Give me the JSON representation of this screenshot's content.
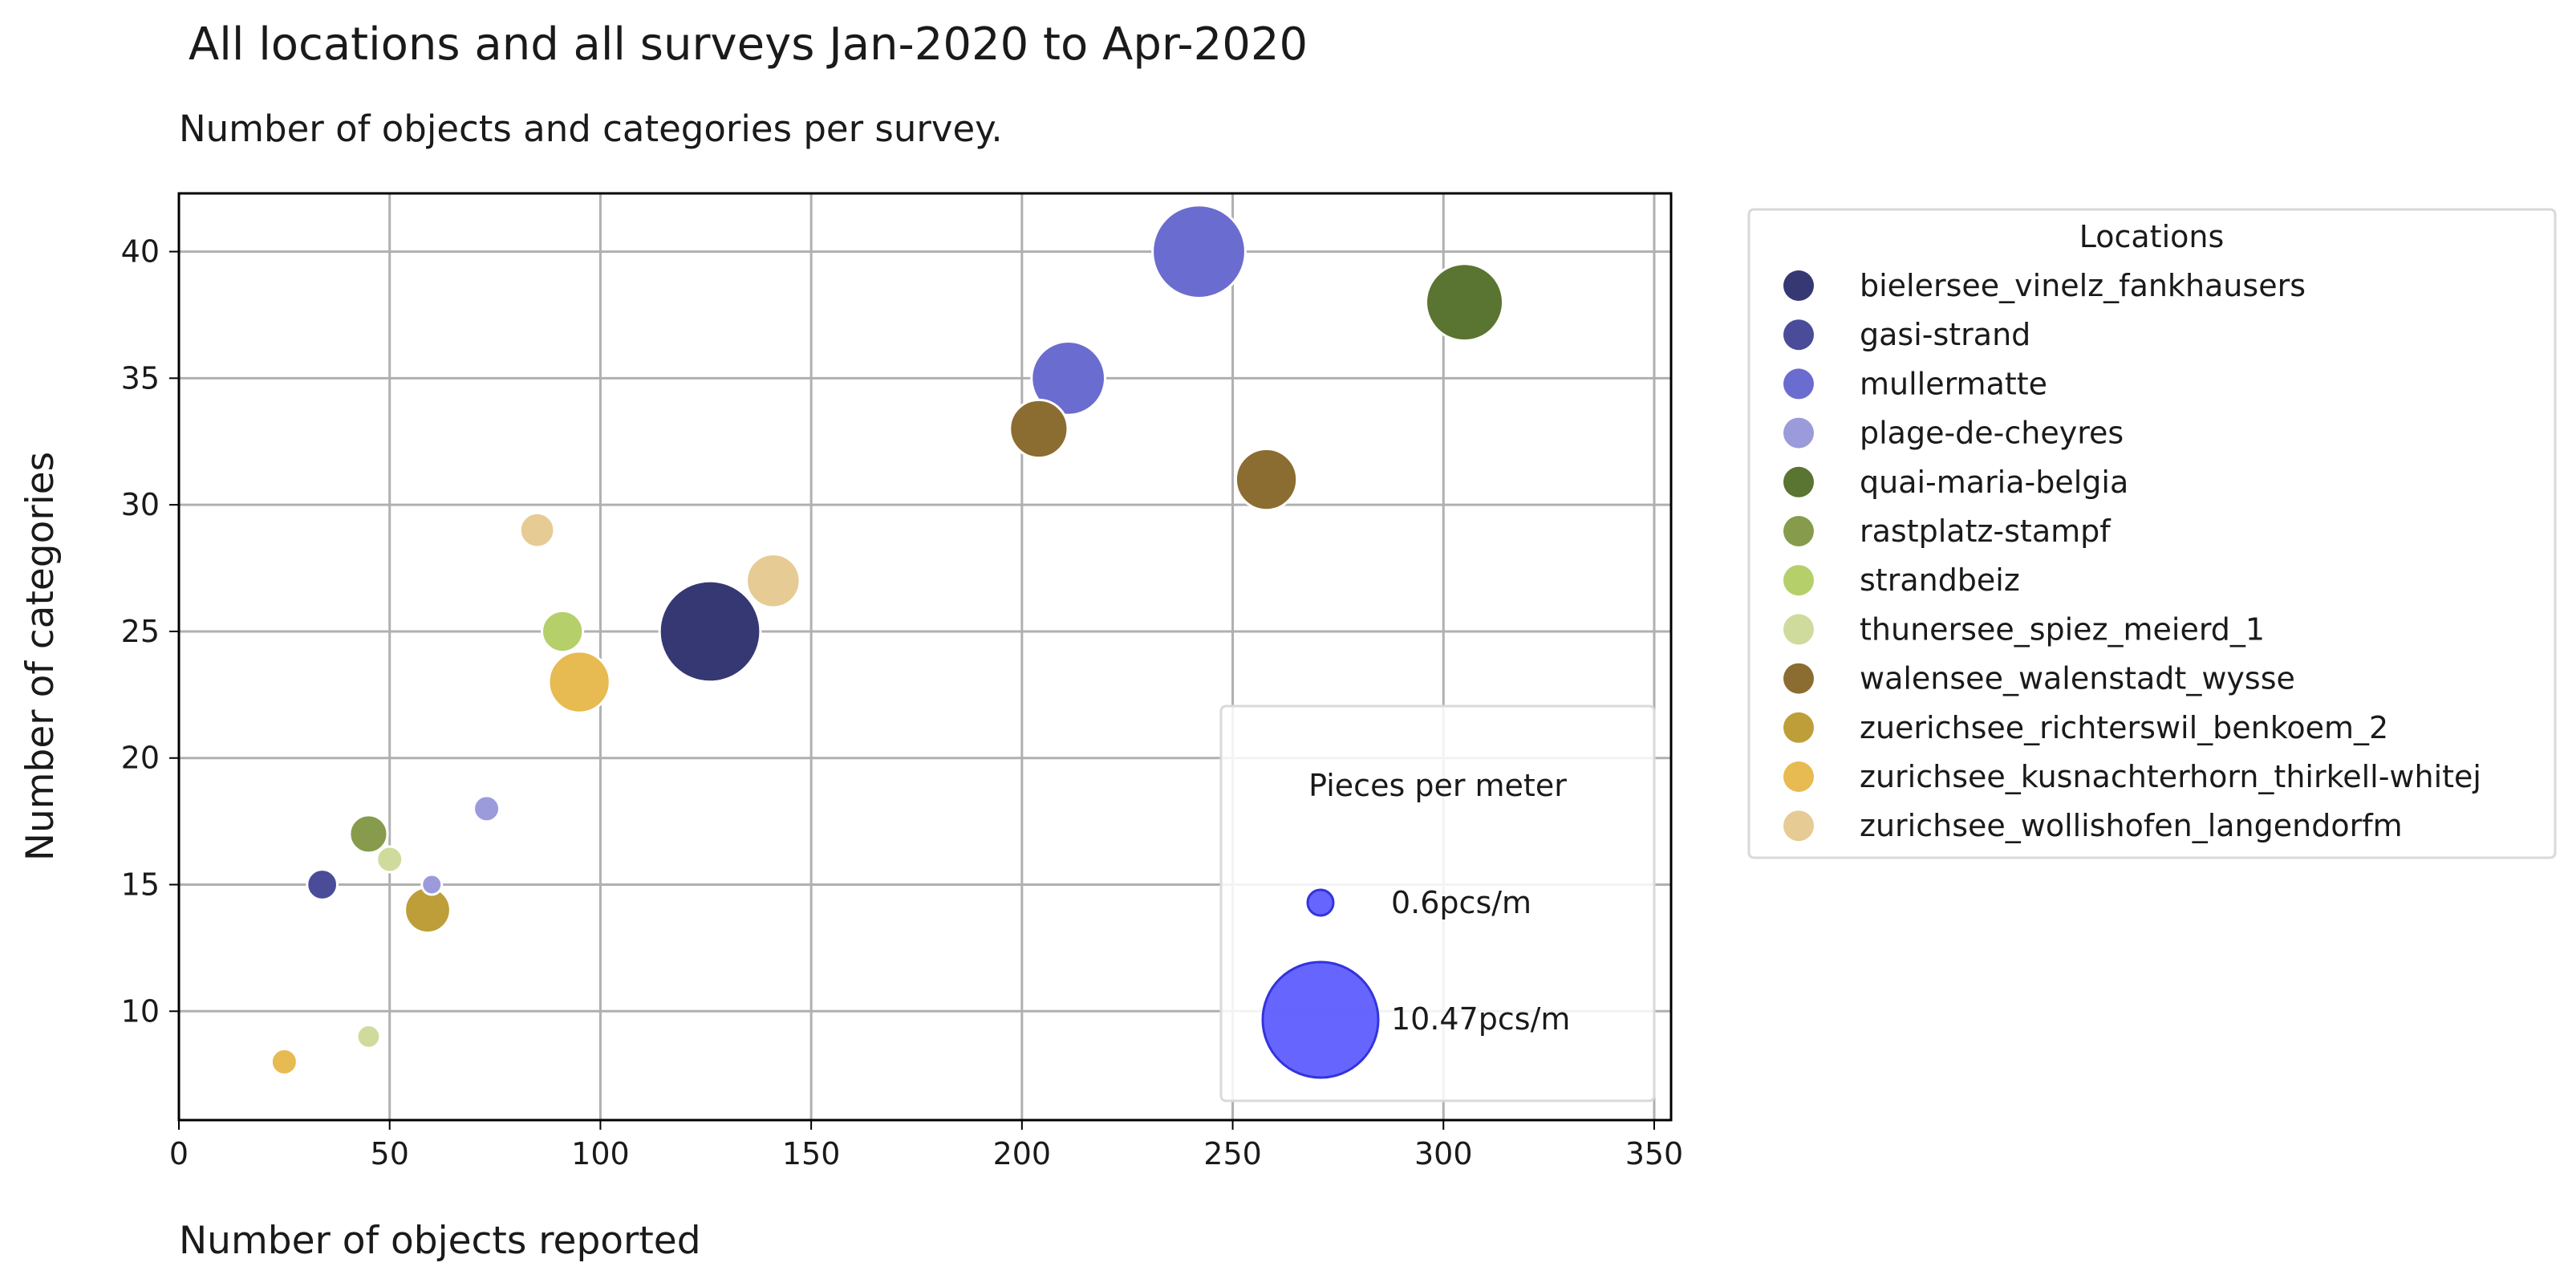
{
  "chart_data": {
    "type": "scatter",
    "title": "All locations and all surveys Jan-2020 to Apr-2020",
    "subtitle": "Number of objects and categories per survey.",
    "xlabel": "Number of objects reported",
    "ylabel": "Number of categories",
    "xlim": [
      0,
      354
    ],
    "ylim": [
      5.7,
      42.3
    ],
    "xticks": [
      0,
      50,
      100,
      150,
      200,
      250,
      300,
      350
    ],
    "yticks": [
      10,
      15,
      20,
      25,
      30,
      35,
      40
    ],
    "grid": true,
    "legend": {
      "title": "Locations",
      "placement": "outside-right",
      "entries": [
        {
          "name": "bielersee_vinelz_fankhausers",
          "color": "#353872"
        },
        {
          "name": "gasi-strand",
          "color": "#4a4c99"
        },
        {
          "name": "mullermatte",
          "color": "#6b6ccf"
        },
        {
          "name": "plage-de-cheyres",
          "color": "#9b9bdb"
        },
        {
          "name": "quai-maria-belgia",
          "color": "#5a7431"
        },
        {
          "name": "rastplatz-stampf",
          "color": "#869c4c"
        },
        {
          "name": "strandbeiz",
          "color": "#b5cf6b"
        },
        {
          "name": "thunersee_spiez_meierd_1",
          "color": "#cedb9c"
        },
        {
          "name": "walensee_walenstadt_wysse",
          "color": "#8c6d31"
        },
        {
          "name": "zuerichsee_richterswil_benkoem_2",
          "color": "#bd9e39"
        },
        {
          "name": "zurichsee_kusnachterhorn_thirkell-whitej",
          "color": "#e7ba52"
        },
        {
          "name": "zurichsee_wollishofen_langendorfm",
          "color": "#e7cb94"
        }
      ]
    },
    "size_legend": {
      "title": "Pieces per meter",
      "placement": "lower-right",
      "color": "#5555ff",
      "entries": [
        {
          "label": "0.6pcs/m",
          "value": 0.6
        },
        {
          "label": "10.47pcs/m",
          "value": 10.47
        }
      ]
    },
    "points": [
      {
        "location": "bielersee_vinelz_fankhausers",
        "x": 126,
        "y": 25,
        "pcs_m": 8.0
      },
      {
        "location": "gasi-strand",
        "x": 34,
        "y": 15,
        "pcs_m": 0.8
      },
      {
        "location": "mullermatte",
        "x": 242,
        "y": 40,
        "pcs_m": 6.8
      },
      {
        "location": "mullermatte",
        "x": 211,
        "y": 35,
        "pcs_m": 4.3
      },
      {
        "location": "plage-de-cheyres",
        "x": 73,
        "y": 18,
        "pcs_m": 0.6
      },
      {
        "location": "plage-de-cheyres",
        "x": 60,
        "y": 15,
        "pcs_m": 0.4
      },
      {
        "location": "quai-maria-belgia",
        "x": 305,
        "y": 38,
        "pcs_m": 4.7
      },
      {
        "location": "rastplatz-stampf",
        "x": 45,
        "y": 17,
        "pcs_m": 1.2
      },
      {
        "location": "strandbeiz",
        "x": 91,
        "y": 25,
        "pcs_m": 1.4
      },
      {
        "location": "thunersee_spiez_meierd_1",
        "x": 50,
        "y": 16,
        "pcs_m": 0.6
      },
      {
        "location": "thunersee_spiez_meierd_1",
        "x": 45,
        "y": 9,
        "pcs_m": 0.5
      },
      {
        "location": "walensee_walenstadt_wysse",
        "x": 204,
        "y": 33,
        "pcs_m": 2.7
      },
      {
        "location": "walensee_walenstadt_wysse",
        "x": 258,
        "y": 31,
        "pcs_m": 3.0
      },
      {
        "location": "zuerichsee_richterswil_benkoem_2",
        "x": 59,
        "y": 14,
        "pcs_m": 1.7
      },
      {
        "location": "zurichsee_kusnachterhorn_thirkell-whitej",
        "x": 95,
        "y": 23,
        "pcs_m": 3.0
      },
      {
        "location": "zurichsee_kusnachterhorn_thirkell-whitej",
        "x": 25,
        "y": 8,
        "pcs_m": 0.6
      },
      {
        "location": "zurichsee_wollishofen_langendorfm",
        "x": 85,
        "y": 29,
        "pcs_m": 1.0
      },
      {
        "location": "zurichsee_wollishofen_langendorfm",
        "x": 141,
        "y": 27,
        "pcs_m": 2.3
      }
    ]
  }
}
